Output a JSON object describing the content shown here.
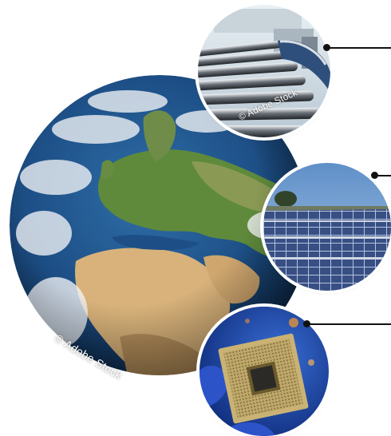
{
  "watermarks": {
    "globe": "© Adobe Stock",
    "conveyor": "© Adobe Stock"
  },
  "colors": {
    "ocean": "#1d4f86",
    "land_green": "#5f8a3c",
    "desert": "#d8b27a",
    "clouds": "#f2f4f6",
    "connector": "#111111",
    "chip_gold": "#c9b273",
    "glove_blue": "#2d53c9"
  },
  "images": [
    {
      "name": "earth-globe",
      "subject": "Earth globe showing Europe and Africa"
    },
    {
      "name": "conveyor-photo",
      "subject": "Curved roller conveyor"
    },
    {
      "name": "solar-photo",
      "subject": "Solar panel field"
    },
    {
      "name": "chip-photo",
      "subject": "Microprocessor chip held in gloved fingers"
    }
  ]
}
